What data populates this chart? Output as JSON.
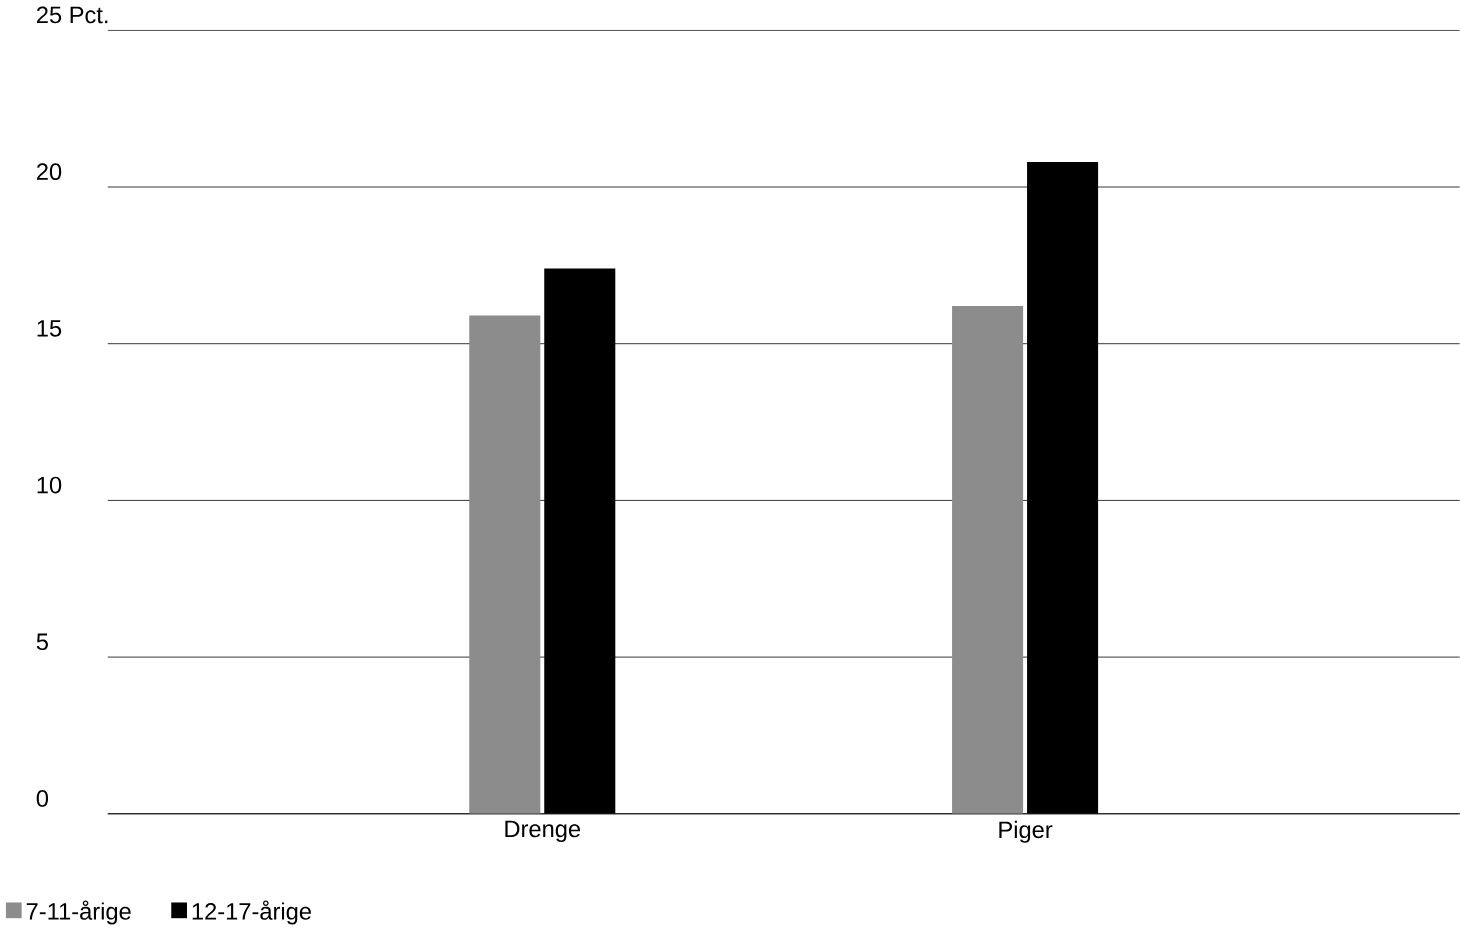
{
  "chart_data": {
    "type": "bar",
    "categories": [
      "Drenge",
      "Piger"
    ],
    "series": [
      {
        "name": "7-11-årige",
        "color": "#8c8c8c",
        "values": [
          15.9,
          16.2
        ]
      },
      {
        "name": "12-17-årige",
        "color": "#000000",
        "values": [
          17.4,
          20.8
        ]
      }
    ],
    "ylim": [
      0,
      25
    ],
    "yticks": [
      0,
      5,
      10,
      15,
      20,
      {
        "value": 25,
        "label": "25 Pct."
      }
    ],
    "grid": "y",
    "legend": "bottom left"
  }
}
